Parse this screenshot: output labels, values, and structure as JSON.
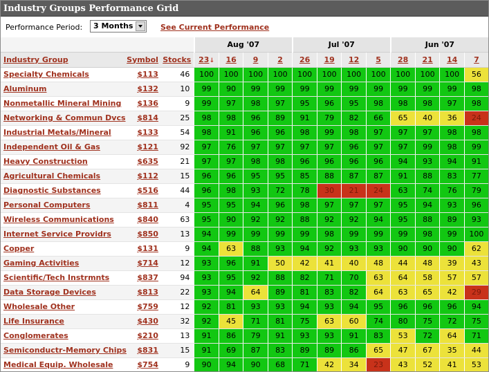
{
  "title": "Industry Groups Performance Grid",
  "controls": {
    "period_label": "Performance Period:",
    "period_value": "3 Months",
    "see_current": "See Current Performance"
  },
  "months": [
    "Aug '07",
    "Jul '07",
    "Jun '07"
  ],
  "headers": {
    "group": "Industry Group",
    "symbol": "Symbol",
    "stocks": "Stocks",
    "weeks": [
      "23",
      "16",
      "9",
      "2",
      "26",
      "19",
      "12",
      "5",
      "28",
      "21",
      "14",
      "7"
    ]
  },
  "colors": {
    "green": "#12c712",
    "yellow": "#ece23a",
    "red": "#c8321a",
    "link": "#a0321f",
    "titlebar": "#5c5c5c"
  },
  "rows": [
    {
      "name": "Specialty Chemicals",
      "symbol": "$113",
      "stocks": "46",
      "values": [
        "100",
        "100",
        "100",
        "100",
        "100",
        "100",
        "100",
        "100",
        "100",
        "100",
        "100",
        "56"
      ],
      "colors": [
        "g",
        "g",
        "g",
        "g",
        "g",
        "g",
        "g",
        "g",
        "g",
        "g",
        "g",
        "y"
      ]
    },
    {
      "name": "Aluminum",
      "symbol": "$132",
      "stocks": "10",
      "values": [
        "99",
        "90",
        "99",
        "99",
        "99",
        "99",
        "99",
        "99",
        "99",
        "99",
        "99",
        "98"
      ],
      "colors": [
        "g",
        "g",
        "g",
        "g",
        "g",
        "g",
        "g",
        "g",
        "g",
        "g",
        "g",
        "g"
      ]
    },
    {
      "name": "Nonmetallic Mineral Mining",
      "symbol": "$136",
      "stocks": "9",
      "values": [
        "99",
        "97",
        "98",
        "97",
        "95",
        "96",
        "95",
        "98",
        "98",
        "98",
        "97",
        "98"
      ],
      "colors": [
        "g",
        "g",
        "g",
        "g",
        "g",
        "g",
        "g",
        "g",
        "g",
        "g",
        "g",
        "g"
      ]
    },
    {
      "name": "Networking & Commun Dvcs",
      "symbol": "$814",
      "stocks": "25",
      "values": [
        "98",
        "98",
        "96",
        "89",
        "91",
        "79",
        "82",
        "66",
        "65",
        "40",
        "36",
        "24"
      ],
      "colors": [
        "g",
        "g",
        "g",
        "g",
        "g",
        "g",
        "g",
        "g",
        "y",
        "y",
        "y",
        "r"
      ]
    },
    {
      "name": "Industrial Metals/Mineral",
      "symbol": "$133",
      "stocks": "54",
      "values": [
        "98",
        "91",
        "96",
        "96",
        "98",
        "99",
        "98",
        "97",
        "97",
        "97",
        "98",
        "98"
      ],
      "colors": [
        "g",
        "g",
        "g",
        "g",
        "g",
        "g",
        "g",
        "g",
        "g",
        "g",
        "g",
        "g"
      ]
    },
    {
      "name": "Independent Oil & Gas",
      "symbol": "$121",
      "stocks": "92",
      "values": [
        "97",
        "76",
        "97",
        "97",
        "97",
        "97",
        "96",
        "97",
        "97",
        "99",
        "98",
        "99"
      ],
      "colors": [
        "g",
        "g",
        "g",
        "g",
        "g",
        "g",
        "g",
        "g",
        "g",
        "g",
        "g",
        "g"
      ]
    },
    {
      "name": "Heavy Construction",
      "symbol": "$635",
      "stocks": "21",
      "values": [
        "97",
        "97",
        "98",
        "98",
        "96",
        "96",
        "96",
        "96",
        "94",
        "93",
        "94",
        "91"
      ],
      "colors": [
        "g",
        "g",
        "g",
        "g",
        "g",
        "g",
        "g",
        "g",
        "g",
        "g",
        "g",
        "g"
      ]
    },
    {
      "name": "Agricultural Chemicals",
      "symbol": "$112",
      "stocks": "15",
      "values": [
        "96",
        "96",
        "95",
        "95",
        "85",
        "88",
        "87",
        "87",
        "91",
        "88",
        "83",
        "77"
      ],
      "colors": [
        "g",
        "g",
        "g",
        "g",
        "g",
        "g",
        "g",
        "g",
        "g",
        "g",
        "g",
        "g"
      ]
    },
    {
      "name": "Diagnostic Substances",
      "symbol": "$516",
      "stocks": "44",
      "values": [
        "96",
        "98",
        "93",
        "72",
        "78",
        "30",
        "21",
        "24",
        "63",
        "74",
        "76",
        "79"
      ],
      "colors": [
        "g",
        "g",
        "g",
        "g",
        "g",
        "r",
        "r",
        "r",
        "g",
        "g",
        "g",
        "g"
      ]
    },
    {
      "name": "Personal Computers",
      "symbol": "$811",
      "stocks": "4",
      "values": [
        "95",
        "95",
        "94",
        "96",
        "98",
        "97",
        "97",
        "97",
        "95",
        "94",
        "93",
        "96"
      ],
      "colors": [
        "g",
        "g",
        "g",
        "g",
        "g",
        "g",
        "g",
        "g",
        "g",
        "g",
        "g",
        "g"
      ]
    },
    {
      "name": "Wireless Communications",
      "symbol": "$840",
      "stocks": "63",
      "values": [
        "95",
        "90",
        "92",
        "92",
        "88",
        "92",
        "92",
        "94",
        "95",
        "88",
        "89",
        "93"
      ],
      "colors": [
        "g",
        "g",
        "g",
        "g",
        "g",
        "g",
        "g",
        "g",
        "g",
        "g",
        "g",
        "g"
      ]
    },
    {
      "name": "Internet Service Providrs",
      "symbol": "$850",
      "stocks": "13",
      "values": [
        "94",
        "99",
        "99",
        "99",
        "99",
        "98",
        "99",
        "99",
        "99",
        "98",
        "99",
        "100"
      ],
      "colors": [
        "g",
        "g",
        "g",
        "g",
        "g",
        "g",
        "g",
        "g",
        "g",
        "g",
        "g",
        "g"
      ]
    },
    {
      "name": "Copper",
      "symbol": "$131",
      "stocks": "9",
      "values": [
        "94",
        "63",
        "88",
        "93",
        "94",
        "92",
        "93",
        "93",
        "90",
        "90",
        "90",
        "62"
      ],
      "colors": [
        "g",
        "y",
        "g",
        "g",
        "g",
        "g",
        "g",
        "g",
        "g",
        "g",
        "g",
        "y"
      ]
    },
    {
      "name": "Gaming Activities",
      "symbol": "$714",
      "stocks": "12",
      "values": [
        "93",
        "96",
        "91",
        "50",
        "42",
        "41",
        "40",
        "48",
        "44",
        "48",
        "39",
        "43"
      ],
      "colors": [
        "g",
        "g",
        "g",
        "y",
        "y",
        "y",
        "y",
        "y",
        "y",
        "y",
        "y",
        "y"
      ]
    },
    {
      "name": "Scientific/Tech Instrmnts",
      "symbol": "$837",
      "stocks": "94",
      "values": [
        "93",
        "95",
        "92",
        "88",
        "82",
        "71",
        "70",
        "63",
        "64",
        "58",
        "57",
        "57"
      ],
      "colors": [
        "g",
        "g",
        "g",
        "g",
        "g",
        "g",
        "g",
        "y",
        "y",
        "y",
        "y",
        "y"
      ]
    },
    {
      "name": "Data Storage Devices",
      "symbol": "$813",
      "stocks": "22",
      "values": [
        "93",
        "94",
        "64",
        "89",
        "81",
        "83",
        "82",
        "64",
        "63",
        "65",
        "42",
        "29"
      ],
      "colors": [
        "g",
        "g",
        "y",
        "g",
        "g",
        "g",
        "g",
        "y",
        "y",
        "y",
        "y",
        "r"
      ]
    },
    {
      "name": "Wholesale Other",
      "symbol": "$759",
      "stocks": "12",
      "values": [
        "92",
        "81",
        "93",
        "93",
        "94",
        "93",
        "94",
        "95",
        "96",
        "96",
        "96",
        "94"
      ],
      "colors": [
        "g",
        "g",
        "g",
        "g",
        "g",
        "g",
        "g",
        "g",
        "g",
        "g",
        "g",
        "g"
      ]
    },
    {
      "name": "Life Insurance",
      "symbol": "$430",
      "stocks": "32",
      "values": [
        "92",
        "45",
        "71",
        "81",
        "75",
        "63",
        "60",
        "74",
        "80",
        "75",
        "72",
        "75"
      ],
      "colors": [
        "g",
        "y",
        "g",
        "g",
        "g",
        "y",
        "y",
        "g",
        "g",
        "g",
        "g",
        "g"
      ]
    },
    {
      "name": "Conglomerates",
      "symbol": "$210",
      "stocks": "13",
      "values": [
        "91",
        "86",
        "79",
        "91",
        "93",
        "93",
        "91",
        "83",
        "53",
        "72",
        "64",
        "71"
      ],
      "colors": [
        "g",
        "g",
        "g",
        "g",
        "g",
        "g",
        "g",
        "g",
        "y",
        "g",
        "y",
        "g"
      ]
    },
    {
      "name": "Semiconductr-Memory Chips",
      "symbol": "$831",
      "stocks": "15",
      "values": [
        "91",
        "69",
        "87",
        "83",
        "89",
        "89",
        "86",
        "65",
        "47",
        "67",
        "35",
        "44"
      ],
      "colors": [
        "g",
        "g",
        "g",
        "g",
        "g",
        "g",
        "g",
        "y",
        "y",
        "y",
        "y",
        "y"
      ]
    },
    {
      "name": "Medical Equip. Wholesale",
      "symbol": "$754",
      "stocks": "9",
      "values": [
        "90",
        "94",
        "90",
        "68",
        "71",
        "42",
        "34",
        "23",
        "43",
        "52",
        "41",
        "53"
      ],
      "colors": [
        "g",
        "g",
        "g",
        "g",
        "g",
        "y",
        "y",
        "r",
        "y",
        "y",
        "y",
        "y"
      ]
    }
  ]
}
